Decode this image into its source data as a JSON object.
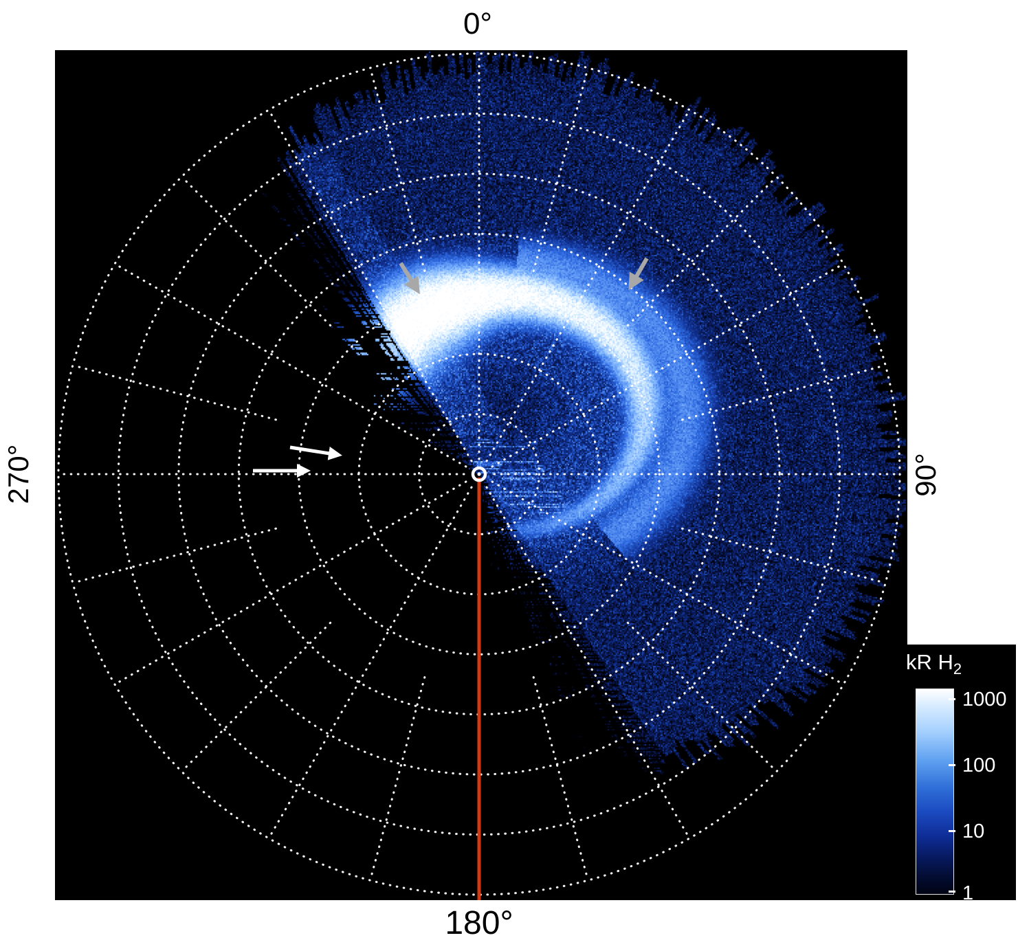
{
  "plot": {
    "background": "#000000",
    "grid_color": "#ffffff",
    "angle_labels": {
      "top": "0°",
      "right": "90°",
      "bottom": "180°",
      "left": "270°"
    },
    "annotation_colors": {
      "white_arrow": "#ffffff",
      "gray_arrow": "#a8a8a8",
      "meridian": "#d23a12",
      "pole_marker": "#ffffff"
    }
  },
  "colorbar": {
    "title_main": "kR H",
    "title_sub": "2",
    "tick_labels": [
      "1000",
      "100",
      "10",
      "1"
    ],
    "scale": "log",
    "top_color": "#ffffff",
    "bottom_color": "#010414"
  },
  "chart_data": {
    "type": "heatmap",
    "projection": "polar",
    "content": "Polar projection map of planetary ultraviolet H2 auroral emission around the pole",
    "units_label": "kR H2",
    "intensity_scale": {
      "type": "log",
      "min": 1,
      "max": 1000,
      "colorbar_ticks": [
        1000,
        100,
        10,
        1
      ],
      "colormap": "black -> dark blue -> blue -> white with increasing intensity"
    },
    "angle_tick_labels": [
      "0°",
      "90°",
      "180°",
      "270°"
    ],
    "grid": {
      "style": "dotted white",
      "rings": 7,
      "radial_line_step_deg": 30,
      "finer_radial_lines_outer_deg_step": 15
    },
    "data_coverage": {
      "azimuth_range_deg": [
        -50,
        168
      ],
      "note": "sector toward 180°-270° (lower left) contains no data; observed region has ragged streaked edges"
    },
    "features": [
      {
        "name": "main-auroral-oval",
        "shape": "partial oval offset from the pole toward 0°-90°",
        "peak_intensity_kR": 1000,
        "brightest_sector": "poleward arc spanning roughly 315° through 0° to 60° azimuth (rendered white)"
      },
      {
        "name": "secondary-outer-arc",
        "intensity_kR": 100,
        "location": "equatorward of the main oval on the 90° side, curling toward 180°"
      },
      {
        "name": "diffuse-speckled-background",
        "intensity_kR": "1-50",
        "location": "throughout the observed sector, grainy blue on black"
      }
    ],
    "annotations": [
      {
        "type": "arrow",
        "color": "#ffffff",
        "count": 2,
        "location": "near the 270° axis at mid radius, pointing toward the pole (rightward)"
      },
      {
        "type": "arrow",
        "color": "#a8a8a8",
        "count": 2,
        "location": "above the bright oval, pointing down toward the emission"
      },
      {
        "type": "meridian-line",
        "color": "#d23a12",
        "azimuth_deg": 180,
        "from": "pole marker",
        "to": "plot bottom edge"
      },
      {
        "type": "pole-marker",
        "style": "white ring with central dot",
        "color": "#ffffff"
      }
    ]
  }
}
